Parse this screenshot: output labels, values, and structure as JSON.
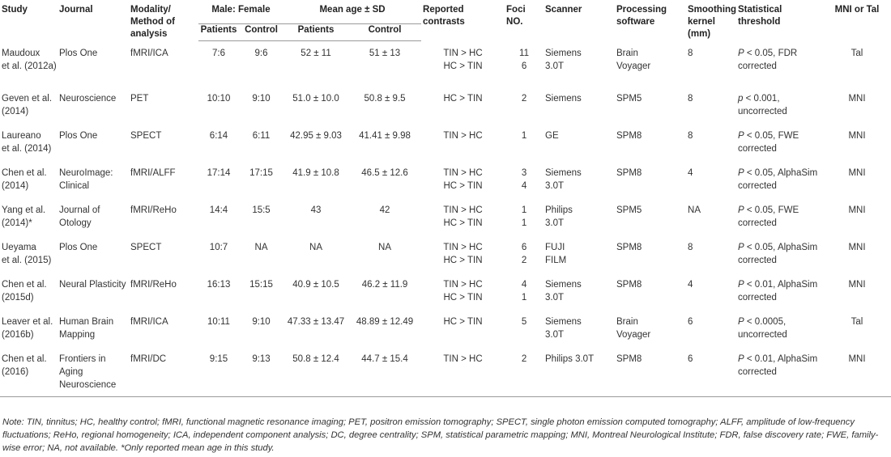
{
  "headers": {
    "study": "Study",
    "journal": "Journal",
    "modality": [
      "Modality/",
      "Method of",
      "analysis"
    ],
    "male_female": "Male: Female",
    "mean_age": "Mean age ± SD",
    "patients": "Patients",
    "control": "Control",
    "contrasts": [
      "Reported",
      "contrasts"
    ],
    "foci": [
      "Foci",
      "NO."
    ],
    "scanner": "Scanner",
    "software": [
      "Processing",
      "software"
    ],
    "kernel": [
      "Smoothing",
      "kernel",
      "(mm)"
    ],
    "threshold": [
      "Statistical",
      "threshold"
    ],
    "space": "MNI or Tal"
  },
  "rows": [
    {
      "study": [
        "Maudoux",
        "et al. (2012a)"
      ],
      "journal": [
        "Plos One"
      ],
      "modality": "fMRI/ICA",
      "mf_patients": "7:6",
      "mf_control": "9:6",
      "age_patients": "52 ± 11",
      "age_control": "51 ± 13",
      "contrasts": [
        "TIN > HC",
        "HC > TIN"
      ],
      "foci": [
        "11",
        "6"
      ],
      "scanner": [
        "Siemens",
        "3.0T"
      ],
      "software": [
        "Brain",
        "Voyager"
      ],
      "kernel": "8",
      "threshold_p": "P",
      "threshold": [
        "< 0.05, FDR",
        "corrected"
      ],
      "space": "Tal"
    },
    {
      "study": [
        "Geven et al.",
        "(2014)"
      ],
      "journal": [
        "Neuroscience"
      ],
      "modality": "PET",
      "mf_patients": "10:10",
      "mf_control": "9:10",
      "age_patients": "51.0 ± 10.0",
      "age_control": "50.8 ± 9.5",
      "contrasts": [
        "HC > TIN"
      ],
      "foci": [
        "2"
      ],
      "scanner": [
        "Siemens"
      ],
      "software": [
        "SPM5"
      ],
      "kernel": "8",
      "threshold_p": "p",
      "threshold": [
        "< 0.001,",
        "uncorrected"
      ],
      "space": "MNI"
    },
    {
      "study": [
        "Laureano",
        "et al. (2014)"
      ],
      "journal": [
        "Plos One"
      ],
      "modality": "SPECT",
      "mf_patients": "6:14",
      "mf_control": "6:11",
      "age_patients": "42.95 ± 9.03",
      "age_control": "41.41 ± 9.98",
      "contrasts": [
        "TIN > HC"
      ],
      "foci": [
        "1"
      ],
      "scanner": [
        "GE"
      ],
      "software": [
        "SPM8"
      ],
      "kernel": "8",
      "threshold_p": "P",
      "threshold": [
        "< 0.05, FWE",
        "corrected"
      ],
      "space": "MNI"
    },
    {
      "study": [
        "Chen et al.",
        "(2014)"
      ],
      "journal": [
        "NeuroImage:",
        "Clinical"
      ],
      "modality": "fMRI/ALFF",
      "mf_patients": "17:14",
      "mf_control": "17:15",
      "age_patients": "41.9 ± 10.8",
      "age_control": "46.5 ± 12.6",
      "contrasts": [
        "TIN > HC",
        "HC > TIN"
      ],
      "foci": [
        "3",
        "4"
      ],
      "scanner": [
        "Siemens",
        "3.0T"
      ],
      "software": [
        "SPM8"
      ],
      "kernel": "4",
      "threshold_p": "P",
      "threshold": [
        "< 0.05, AlphaSim",
        "corrected"
      ],
      "space": "MNI"
    },
    {
      "study": [
        "Yang et al.",
        "(2014)*"
      ],
      "journal": [
        "Journal of",
        "Otology"
      ],
      "modality": "fMRI/ReHo",
      "mf_patients": "14:4",
      "mf_control": "15:5",
      "age_patients": "43",
      "age_control": "42",
      "contrasts": [
        "TIN > HC",
        "HC > TIN"
      ],
      "foci": [
        "1",
        "1"
      ],
      "scanner": [
        "Philips",
        "3.0T"
      ],
      "software": [
        "SPM5"
      ],
      "kernel": "NA",
      "threshold_p": "P",
      "threshold": [
        "< 0.05, FWE",
        "corrected"
      ],
      "space": "MNI"
    },
    {
      "study": [
        "Ueyama",
        "et al. (2015)"
      ],
      "journal": [
        "Plos One"
      ],
      "modality": "SPECT",
      "mf_patients": "10:7",
      "mf_control": "NA",
      "age_patients": "NA",
      "age_control": "NA",
      "contrasts": [
        "TIN > HC",
        "HC > TIN"
      ],
      "foci": [
        "6",
        "2"
      ],
      "scanner": [
        "FUJI",
        "FILM"
      ],
      "software": [
        "SPM8"
      ],
      "kernel": "8",
      "threshold_p": "P",
      "threshold": [
        "< 0.05, AlphaSim",
        "corrected"
      ],
      "space": "MNI"
    },
    {
      "study": [
        "Chen et al.",
        "(2015d)"
      ],
      "journal": [
        "Neural Plasticity"
      ],
      "modality": "fMRI/ReHo",
      "mf_patients": "16:13",
      "mf_control": "15:15",
      "age_patients": "40.9 ± 10.5",
      "age_control": "46.2 ± 11.9",
      "contrasts": [
        "TIN > HC",
        "HC > TIN"
      ],
      "foci": [
        "4",
        "1"
      ],
      "scanner": [
        "Siemens",
        "3.0T"
      ],
      "software": [
        "SPM8"
      ],
      "kernel": "4",
      "threshold_p": "P",
      "threshold": [
        "< 0.01, AlphaSim",
        "corrected"
      ],
      "space": "MNI"
    },
    {
      "study": [
        "Leaver et al.",
        "(2016b)"
      ],
      "journal": [
        "Human Brain",
        "Mapping"
      ],
      "modality": "fMRI/ICA",
      "mf_patients": "10:11",
      "mf_control": "9:10",
      "age_patients": "47.33 ± 13.47",
      "age_control": "48.89 ± 12.49",
      "contrasts": [
        "HC > TIN"
      ],
      "foci": [
        "5"
      ],
      "scanner": [
        "Siemens",
        "3.0T"
      ],
      "software": [
        "Brain",
        "Voyager"
      ],
      "kernel": "6",
      "threshold_p": "P",
      "threshold": [
        "< 0.0005,",
        "uncorrected"
      ],
      "space": "Tal"
    },
    {
      "study": [
        "Chen et al.",
        "(2016)"
      ],
      "journal": [
        "Frontiers in",
        "Aging",
        "Neuroscience"
      ],
      "modality": "fMRI/DC",
      "mf_patients": "9:15",
      "mf_control": "9:13",
      "age_patients": "50.8 ± 12.4",
      "age_control": "44.7 ± 15.4",
      "contrasts": [
        "TIN > HC"
      ],
      "foci": [
        "2"
      ],
      "scanner": [
        "Philips 3.0T"
      ],
      "software": [
        "SPM8"
      ],
      "kernel": "6",
      "threshold_p": "P",
      "threshold": [
        "< 0.01, AlphaSim",
        "corrected"
      ],
      "space": "MNI"
    }
  ],
  "note": "Note: TIN, tinnitus; HC, healthy control; fMRI, functional magnetic resonance imaging; PET, positron emission tomography; SPECT, single photon emission computed tomography; ALFF, amplitude of low-frequency fluctuations; ReHo, regional homogeneity; ICA, independent component analysis; DC, degree centrality; SPM, statistical parametric mapping; MNI, Montreal Neurological Institute; FDR, false discovery rate; FWE, family-wise error; NA, not available. *Only reported mean age in this study."
}
